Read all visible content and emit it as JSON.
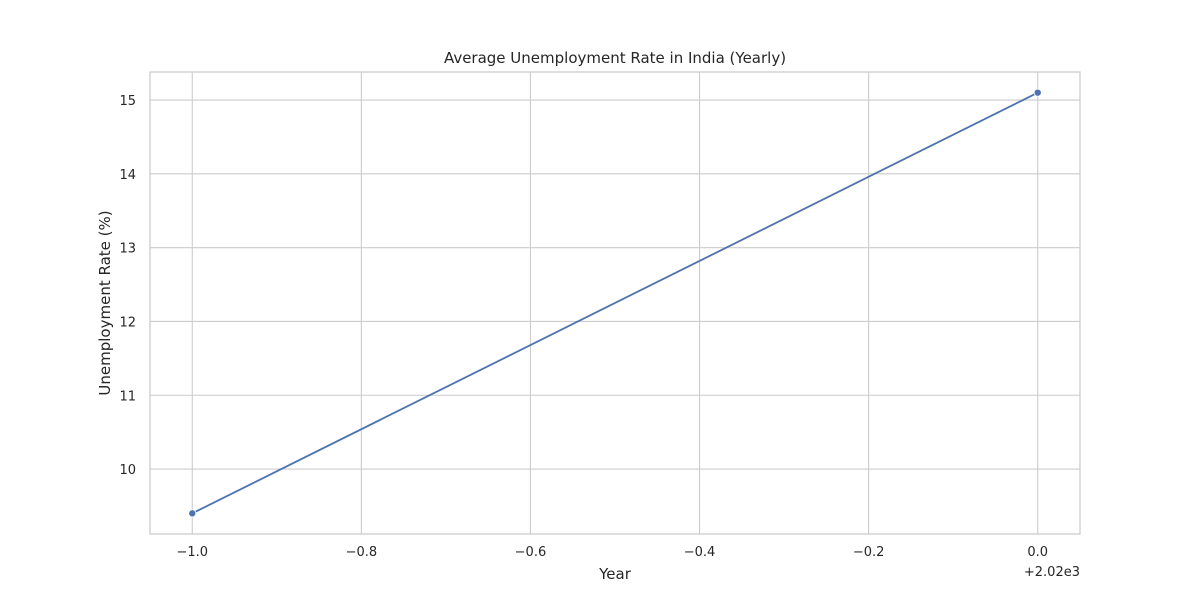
{
  "chart_data": {
    "type": "line",
    "title": "Average Unemployment Rate in India (Yearly)",
    "xlabel": "Year",
    "ylabel": "Unemployment Rate (%)",
    "x_offset_label": "+2.02e3",
    "x_ticks": [
      -1.0,
      -0.8,
      -0.6,
      -0.4,
      -0.2,
      0.0
    ],
    "x_tick_labels": [
      "−1.0",
      "−0.8",
      "−0.6",
      "−0.4",
      "−0.2",
      "0.0"
    ],
    "y_ticks": [
      10,
      11,
      12,
      13,
      14,
      15
    ],
    "y_tick_labels": [
      "10",
      "11",
      "12",
      "13",
      "14",
      "15"
    ],
    "xlim": [
      -1.05,
      0.05
    ],
    "ylim": [
      9.12,
      15.38
    ],
    "grid": true,
    "series": [
      {
        "x": [
          -1.0,
          0.0
        ],
        "y": [
          9.4,
          15.1
        ],
        "color": "#4c72b0",
        "marker": "circle"
      }
    ]
  }
}
